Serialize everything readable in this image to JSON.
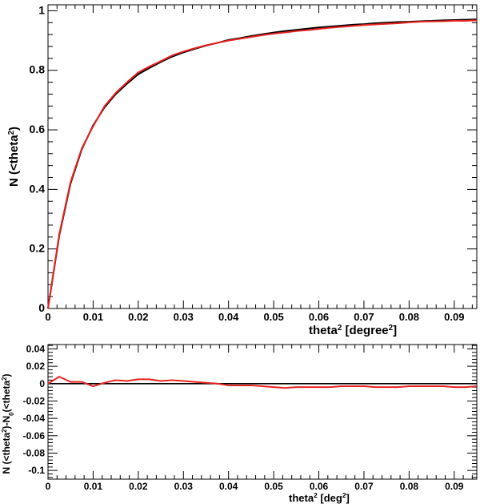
{
  "colors": {
    "black_curve": "#000000",
    "red_curve": "#e8221f",
    "axis": "#000000"
  },
  "chart_data": [
    {
      "type": "line",
      "xlabel_parts": [
        "theta",
        "2",
        " [degree",
        "2",
        "]"
      ],
      "ylabel_parts": [
        "N (<theta",
        "2",
        ")"
      ],
      "xlim": [
        0,
        0.095
      ],
      "ylim": [
        0,
        1.02
      ],
      "xticks": [
        0,
        0.01,
        0.02,
        0.03,
        0.04,
        0.05,
        0.06,
        0.07,
        0.08,
        0.09
      ],
      "xtick_labels": [
        "0",
        "0.01",
        "0.02",
        "0.03",
        "0.04",
        "0.05",
        "0.06",
        "0.07",
        "0.08",
        "0.09"
      ],
      "yticks": [
        0,
        0.2,
        0.4,
        0.6,
        0.8,
        1
      ],
      "ytick_labels": [
        "0",
        "0.2",
        "0.4",
        "0.6",
        "0.8",
        "1"
      ],
      "grid": false,
      "series": [
        {
          "color": "black",
          "x": [
            0,
            0.0025,
            0.005,
            0.0075,
            0.01,
            0.0125,
            0.015,
            0.0175,
            0.02,
            0.0225,
            0.025,
            0.0275,
            0.03,
            0.0325,
            0.035,
            0.0375,
            0.04,
            0.0425,
            0.045,
            0.0475,
            0.05,
            0.0525,
            0.055,
            0.0575,
            0.06,
            0.0625,
            0.065,
            0.0675,
            0.07,
            0.0725,
            0.075,
            0.0775,
            0.08,
            0.0825,
            0.085,
            0.0875,
            0.09,
            0.0925,
            0.095
          ],
          "y": [
            0,
            0.245,
            0.42,
            0.535,
            0.615,
            0.675,
            0.72,
            0.755,
            0.787,
            0.808,
            0.828,
            0.846,
            0.86,
            0.872,
            0.883,
            0.892,
            0.902,
            0.908,
            0.915,
            0.921,
            0.927,
            0.932,
            0.936,
            0.94,
            0.944,
            0.947,
            0.95,
            0.953,
            0.955,
            0.958,
            0.96,
            0.962,
            0.963,
            0.965,
            0.966,
            0.968,
            0.969,
            0.97,
            0.971
          ]
        },
        {
          "color": "red",
          "x": [
            0,
            0.0025,
            0.005,
            0.0075,
            0.01,
            0.0125,
            0.015,
            0.0175,
            0.02,
            0.0225,
            0.025,
            0.0275,
            0.03,
            0.0325,
            0.035,
            0.0375,
            0.04,
            0.0425,
            0.045,
            0.0475,
            0.05,
            0.0525,
            0.055,
            0.0575,
            0.06,
            0.0625,
            0.065,
            0.0675,
            0.07,
            0.0725,
            0.075,
            0.0775,
            0.08,
            0.0825,
            0.085,
            0.0875,
            0.09,
            0.0925,
            0.095
          ],
          "y": [
            0,
            0.25,
            0.425,
            0.538,
            0.612,
            0.679,
            0.724,
            0.76,
            0.793,
            0.813,
            0.831,
            0.85,
            0.863,
            0.874,
            0.884,
            0.892,
            0.9,
            0.906,
            0.912,
            0.918,
            0.923,
            0.927,
            0.932,
            0.935,
            0.939,
            0.943,
            0.946,
            0.949,
            0.952,
            0.954,
            0.956,
            0.958,
            0.961,
            0.963,
            0.964,
            0.965,
            0.966,
            0.966,
            0.968
          ]
        }
      ]
    },
    {
      "type": "line",
      "xlabel_parts": [
        "theta",
        "2",
        " [deg",
        "2",
        "]"
      ],
      "ylabel_parts": [
        "N (<theta",
        "2",
        ")-N",
        "0",
        "(<theta",
        "2",
        ")"
      ],
      "xlim": [
        0,
        0.095
      ],
      "ylim": [
        -0.11,
        0.045
      ],
      "xticks": [
        0,
        0.01,
        0.02,
        0.03,
        0.04,
        0.05,
        0.06,
        0.07,
        0.08,
        0.09
      ],
      "xtick_labels": [
        "0",
        "0.01",
        "0.02",
        "0.03",
        "0.04",
        "0.05",
        "0.06",
        "0.07",
        "0.08",
        "0.09"
      ],
      "yticks": [
        -0.1,
        -0.08,
        -0.06,
        -0.04,
        -0.02,
        0,
        0.02,
        0.04
      ],
      "ytick_labels": [
        "-0.1",
        "-0.08",
        "-0.06",
        "-0.04",
        "-0.02",
        "0",
        "0.02",
        "0.04"
      ],
      "grid": false,
      "reference_line": 0,
      "series": [
        {
          "color": "red",
          "x": [
            0,
            0.0025,
            0.005,
            0.0075,
            0.01,
            0.0125,
            0.015,
            0.0175,
            0.02,
            0.0225,
            0.025,
            0.0275,
            0.03,
            0.0325,
            0.035,
            0.0375,
            0.04,
            0.0425,
            0.045,
            0.0475,
            0.05,
            0.0525,
            0.055,
            0.0575,
            0.06,
            0.0625,
            0.065,
            0.0675,
            0.07,
            0.0725,
            0.075,
            0.0775,
            0.08,
            0.0825,
            0.085,
            0.0875,
            0.09,
            0.0925,
            0.095
          ],
          "y": [
            0,
            0.008,
            0.002,
            0.002,
            -0.003,
            0.001,
            0.004,
            0.003,
            0.005,
            0.005,
            0.003,
            0.004,
            0.003,
            0.002,
            0.001,
            0.0,
            -0.002,
            -0.002,
            -0.002,
            -0.003,
            -0.004,
            -0.005,
            -0.004,
            -0.004,
            -0.004,
            -0.004,
            -0.003,
            -0.003,
            -0.003,
            -0.004,
            -0.004,
            -0.004,
            -0.003,
            -0.003,
            -0.003,
            -0.003,
            -0.004,
            -0.004,
            -0.003
          ]
        }
      ]
    }
  ]
}
